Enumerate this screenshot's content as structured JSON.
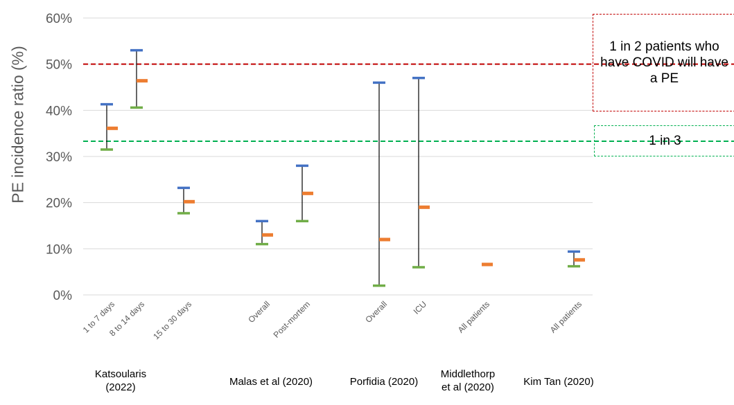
{
  "chart_data": {
    "type": "error-bar",
    "ylabel": "PE incidence ratio (%)",
    "ylim": [
      0,
      60
    ],
    "yticks": [
      "0%",
      "10%",
      "20%",
      "30%",
      "40%",
      "50%",
      "60%"
    ],
    "grid": true,
    "points": [
      {
        "label": "1 to 7 days",
        "group": 0,
        "upper": 41.3,
        "estimate": 36.1,
        "lower": 31.5
      },
      {
        "label": "8 to 14 days",
        "group": 0,
        "upper": 53.0,
        "estimate": 46.4,
        "lower": 40.6
      },
      {
        "label": "15 to 30 days",
        "group": 0,
        "upper": 23.2,
        "estimate": 20.2,
        "lower": 17.7
      },
      {
        "label": "Overall",
        "group": 1,
        "upper": 16.0,
        "estimate": 13.0,
        "lower": 11.0
      },
      {
        "label": "Post-mortem",
        "group": 1,
        "upper": 28.0,
        "estimate": 22.0,
        "lower": 16.0
      },
      {
        "label": "Overall",
        "group": 2,
        "upper": 46.0,
        "estimate": 12.0,
        "lower": 2.0
      },
      {
        "label": "ICU",
        "group": 2,
        "upper": 47.0,
        "estimate": 19.0,
        "lower": 6.0
      },
      {
        "label": "All patients",
        "group": 3,
        "upper": null,
        "estimate": 6.6,
        "lower": null
      },
      {
        "label": "All patients",
        "group": 4,
        "upper": 9.4,
        "estimate": 7.6,
        "lower": 6.2
      }
    ],
    "groups": [
      {
        "name": "Katsoularis (2022)",
        "lines": [
          "Katsoularis",
          "(2022)"
        ]
      },
      {
        "name": "Malas et al (2020)",
        "lines": [
          "Malas et al (2020)"
        ]
      },
      {
        "name": "Porfidia (2020)",
        "lines": [
          "Porfidia (2020)"
        ]
      },
      {
        "name": "Middlethorp et al (2020)",
        "lines": [
          "Middlethorp",
          "et al (2020)"
        ]
      },
      {
        "name": "Kim Tan (2020)",
        "lines": [
          "Kim Tan (2020)"
        ]
      }
    ],
    "reference_lines": [
      {
        "value": 50,
        "color": "#c00000",
        "style": "dashed",
        "label": "1 in 2 patients who have COVID will have a PE"
      },
      {
        "value": 33.3,
        "color": "#00b050",
        "style": "dashed",
        "label": "1 in 3"
      }
    ],
    "colors": {
      "upper": "#4472c4",
      "estimate": "#ed7d31",
      "lower": "#70ad47",
      "whisker": "#000000",
      "grid": "#d9d9d9"
    }
  }
}
